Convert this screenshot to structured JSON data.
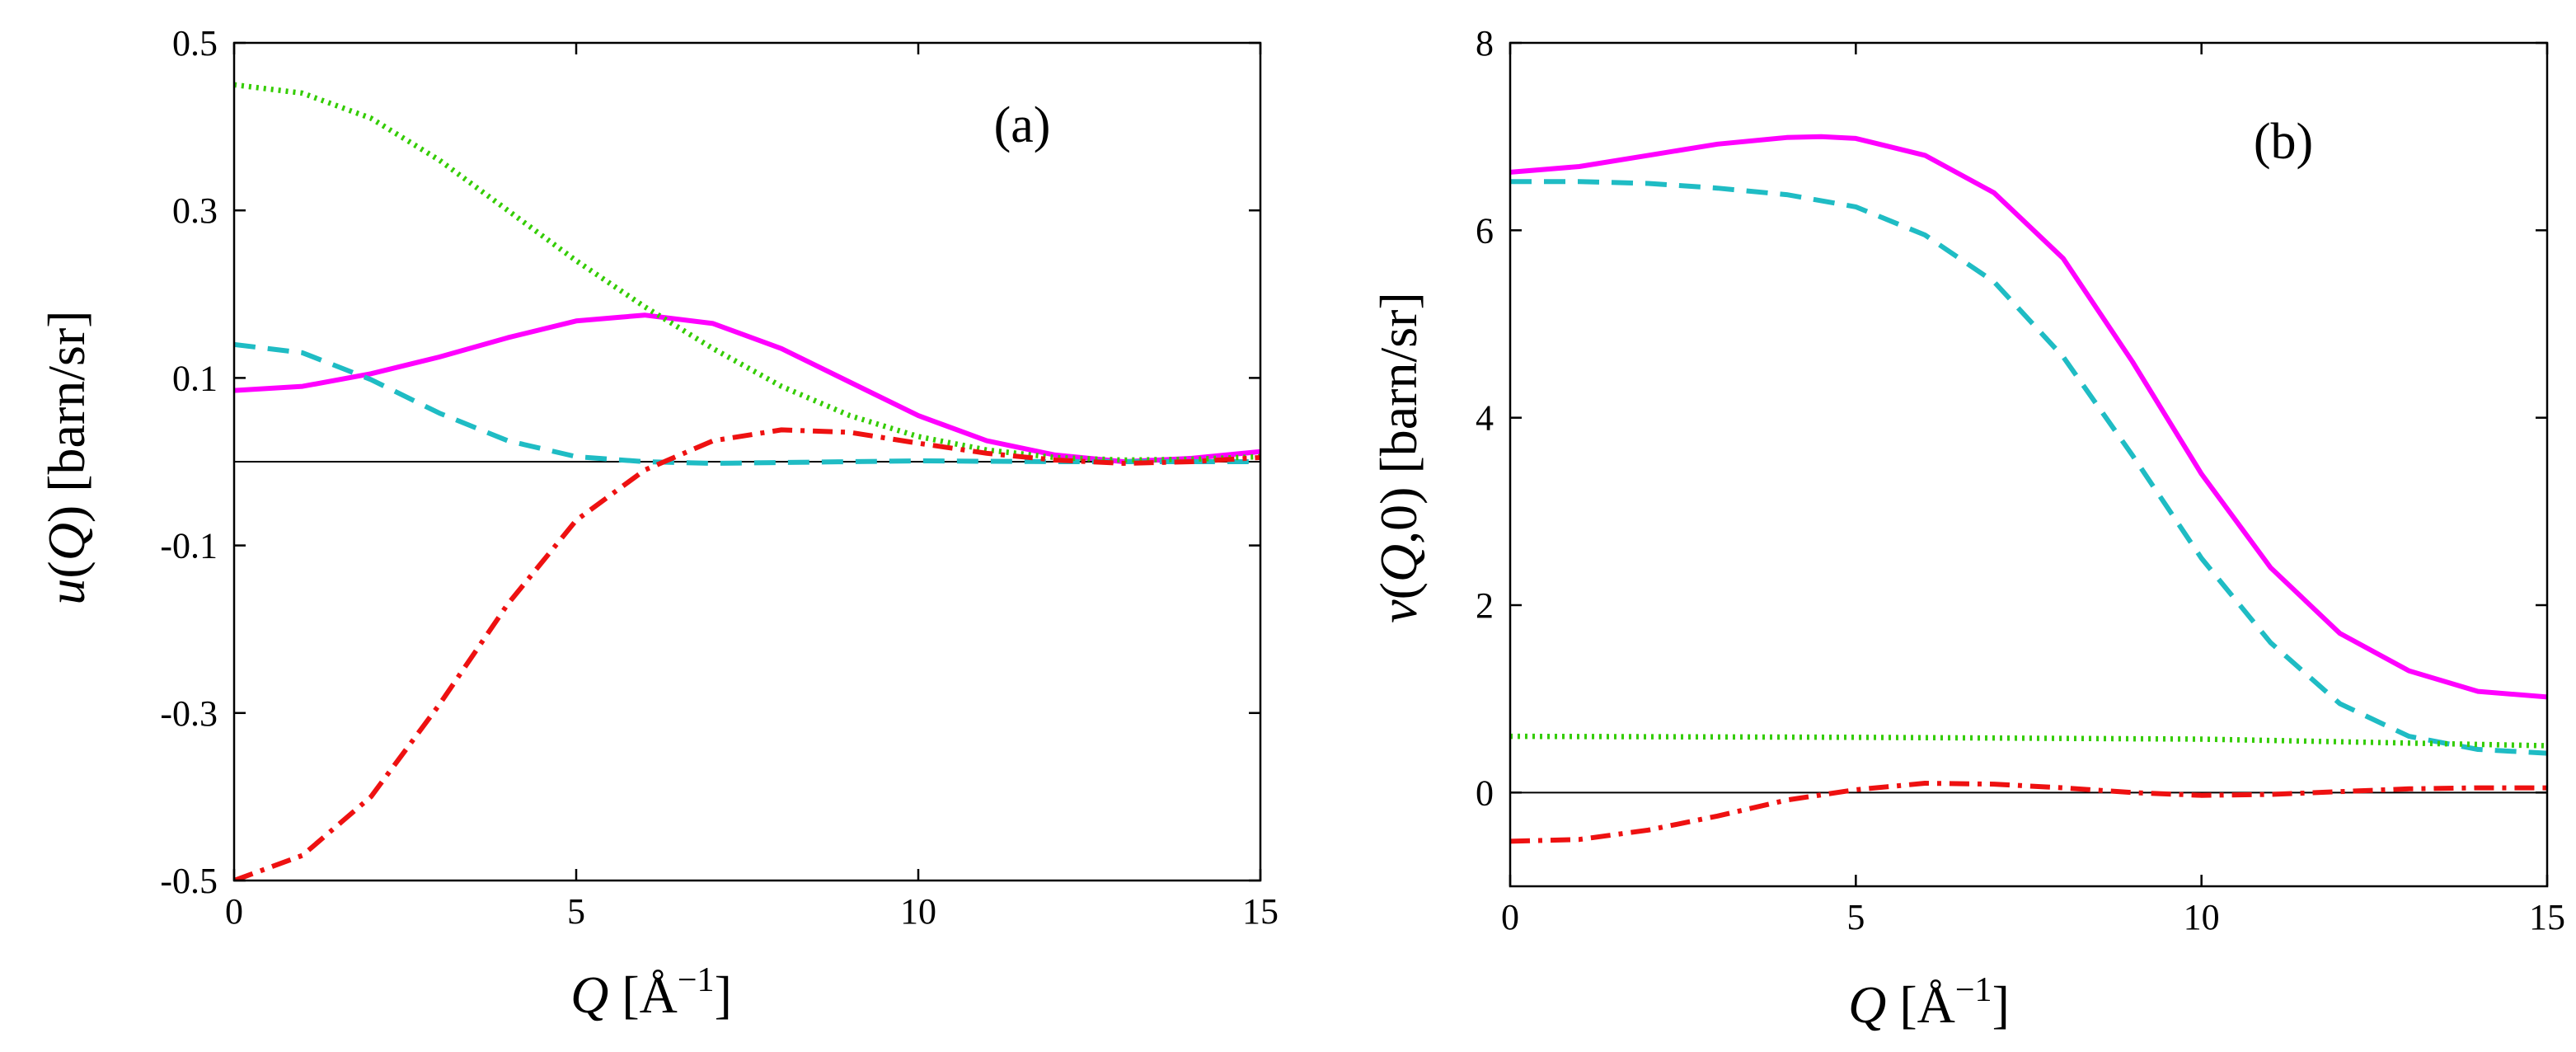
{
  "chart_data": [
    {
      "type": "line",
      "panel_label": "(a)",
      "xlabel": {
        "symbol": "Q",
        "bracket_open": " [",
        "unit": "Å",
        "sup": "−1",
        "bracket_close": "]"
      },
      "ylabel": {
        "func": "u",
        "open": "(",
        "symbol": "Q",
        "close": ")",
        "unit": " [barn/sr]"
      },
      "xlim": [
        0,
        15
      ],
      "ylim": [
        -0.5,
        0.5
      ],
      "xticks": [
        0,
        5,
        10,
        15
      ],
      "xtick_labels": [
        "0",
        "5",
        "10",
        "15"
      ],
      "yticks": [
        -0.5,
        -0.3,
        -0.1,
        0.1,
        0.3,
        0.5
      ],
      "ytick_labels": [
        "-0.5",
        "-0.3",
        "-0.1",
        "0.1",
        "0.3",
        "0.5"
      ],
      "zero_line": true,
      "series": [
        {
          "name": "magenta-solid",
          "color": "#ff00ff",
          "dash": "solid",
          "x": [
            0,
            1,
            2,
            3,
            4,
            5,
            6,
            7,
            8,
            9,
            10,
            11,
            12,
            13,
            14,
            15
          ],
          "y": [
            0.085,
            0.09,
            0.105,
            0.125,
            0.148,
            0.168,
            0.175,
            0.165,
            0.135,
            0.095,
            0.055,
            0.025,
            0.008,
            0.0,
            0.004,
            0.012
          ]
        },
        {
          "name": "cyan-dashed",
          "color": "#1fbcc4",
          "dash": "dashed",
          "x": [
            0,
            1,
            2,
            3,
            4,
            5,
            6,
            7,
            8,
            10,
            12,
            13,
            15
          ],
          "y": [
            0.14,
            0.13,
            0.098,
            0.058,
            0.025,
            0.006,
            0.0,
            -0.002,
            -0.001,
            0.001,
            0.0,
            0.0,
            0.0
          ]
        },
        {
          "name": "green-dotted",
          "color": "#33cc00",
          "dash": "dotted",
          "x": [
            0,
            1,
            2,
            3,
            4,
            5,
            6,
            7,
            8,
            9,
            10,
            11,
            12,
            13,
            14,
            15
          ],
          "y": [
            0.45,
            0.44,
            0.41,
            0.36,
            0.3,
            0.24,
            0.185,
            0.135,
            0.09,
            0.055,
            0.03,
            0.014,
            0.005,
            0.002,
            0.003,
            0.006
          ]
        },
        {
          "name": "red-dashdot",
          "color": "#ee1111",
          "dash": "dashdot",
          "x": [
            0,
            1,
            2,
            3,
            4,
            5,
            6,
            7,
            8,
            9,
            10,
            11,
            12,
            13,
            14,
            15
          ],
          "y": [
            -0.5,
            -0.47,
            -0.4,
            -0.29,
            -0.17,
            -0.07,
            -0.01,
            0.025,
            0.038,
            0.035,
            0.022,
            0.01,
            0.002,
            -0.002,
            0.0,
            0.005
          ]
        }
      ]
    },
    {
      "type": "line",
      "panel_label": "(b)",
      "xlabel": {
        "symbol": "Q",
        "bracket_open": " [",
        "unit": "Å",
        "sup": "−1",
        "bracket_close": "]"
      },
      "ylabel": {
        "func": "v",
        "open": "(",
        "symbol": "Q",
        "close": ",0)",
        "unit": " [barn/sr]"
      },
      "xlim": [
        0,
        15
      ],
      "ylim": [
        -1,
        8
      ],
      "xticks": [
        0,
        5,
        10,
        15
      ],
      "xtick_labels": [
        "0",
        "5",
        "10",
        "15"
      ],
      "yticks": [
        0,
        2,
        4,
        6,
        8
      ],
      "ytick_labels": [
        "0",
        "2",
        "4",
        "6",
        "8"
      ],
      "zero_line": true,
      "series": [
        {
          "name": "magenta-solid",
          "color": "#ff00ff",
          "dash": "solid",
          "x": [
            0,
            1,
            2,
            3,
            4,
            4.5,
            5,
            6,
            7,
            8,
            9,
            10,
            11,
            12,
            13,
            14,
            15
          ],
          "y": [
            6.62,
            6.68,
            6.8,
            6.92,
            6.99,
            7.0,
            6.98,
            6.8,
            6.4,
            5.7,
            4.6,
            3.4,
            2.4,
            1.7,
            1.3,
            1.08,
            1.02
          ]
        },
        {
          "name": "cyan-dashed",
          "color": "#1fbcc4",
          "dash": "dashed",
          "x": [
            0,
            1,
            2,
            3,
            4,
            5,
            6,
            7,
            8,
            9,
            10,
            11,
            12,
            13,
            14,
            15
          ],
          "y": [
            6.52,
            6.52,
            6.5,
            6.45,
            6.38,
            6.25,
            5.95,
            5.45,
            4.65,
            3.6,
            2.5,
            1.6,
            0.95,
            0.6,
            0.46,
            0.42
          ]
        },
        {
          "name": "green-dotted",
          "color": "#33cc00",
          "dash": "dotted",
          "x": [
            0,
            5,
            10,
            15
          ],
          "y": [
            0.6,
            0.59,
            0.57,
            0.5
          ]
        },
        {
          "name": "red-dashdot",
          "color": "#ee1111",
          "dash": "dashdot",
          "x": [
            0,
            1,
            2,
            3,
            4,
            5,
            6,
            7,
            8,
            9,
            10,
            11,
            12,
            13,
            14,
            15
          ],
          "y": [
            -0.52,
            -0.5,
            -0.4,
            -0.25,
            -0.08,
            0.03,
            0.1,
            0.09,
            0.05,
            0.0,
            -0.03,
            -0.02,
            0.01,
            0.04,
            0.05,
            0.05
          ]
        }
      ]
    }
  ]
}
